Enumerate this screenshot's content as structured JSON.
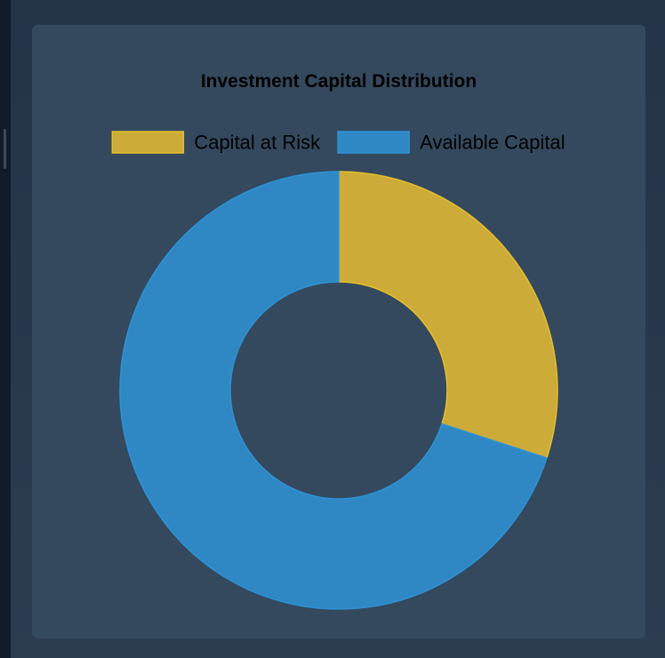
{
  "chart_data": {
    "type": "pie",
    "variant": "doughnut",
    "title": "Investment Capital Distribution",
    "legend_position": "top",
    "categories": [
      "Capital at Risk",
      "Available Capital"
    ],
    "values": [
      30,
      70
    ],
    "colors": [
      "#cdab38",
      "#2f88c4"
    ],
    "border_colors": [
      "#e8be2b",
      "#2e92d6"
    ]
  }
}
